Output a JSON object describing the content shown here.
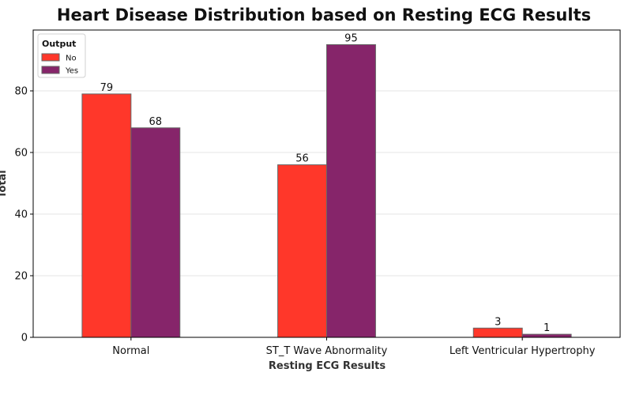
{
  "chart_data": {
    "type": "bar",
    "title": "Heart Disease Distribution based on Resting ECG Results",
    "xlabel": "Resting ECG Results",
    "ylabel": "Total",
    "categories": [
      "Normal",
      "ST_T Wave Abnormality",
      "Left Ventricular Hypertrophy"
    ],
    "series": [
      {
        "name": "No",
        "values": [
          79,
          56,
          3
        ],
        "color": "#ff372a"
      },
      {
        "name": "Yes",
        "values": [
          68,
          95,
          1
        ],
        "color": "#86256a"
      }
    ],
    "ylim": [
      0,
      99.75
    ],
    "yticks": [
      0,
      20,
      40,
      60,
      80
    ],
    "grid": "horizontal",
    "legend": {
      "title": "Output",
      "placement": "top-left"
    },
    "edge_color": "#666666"
  }
}
